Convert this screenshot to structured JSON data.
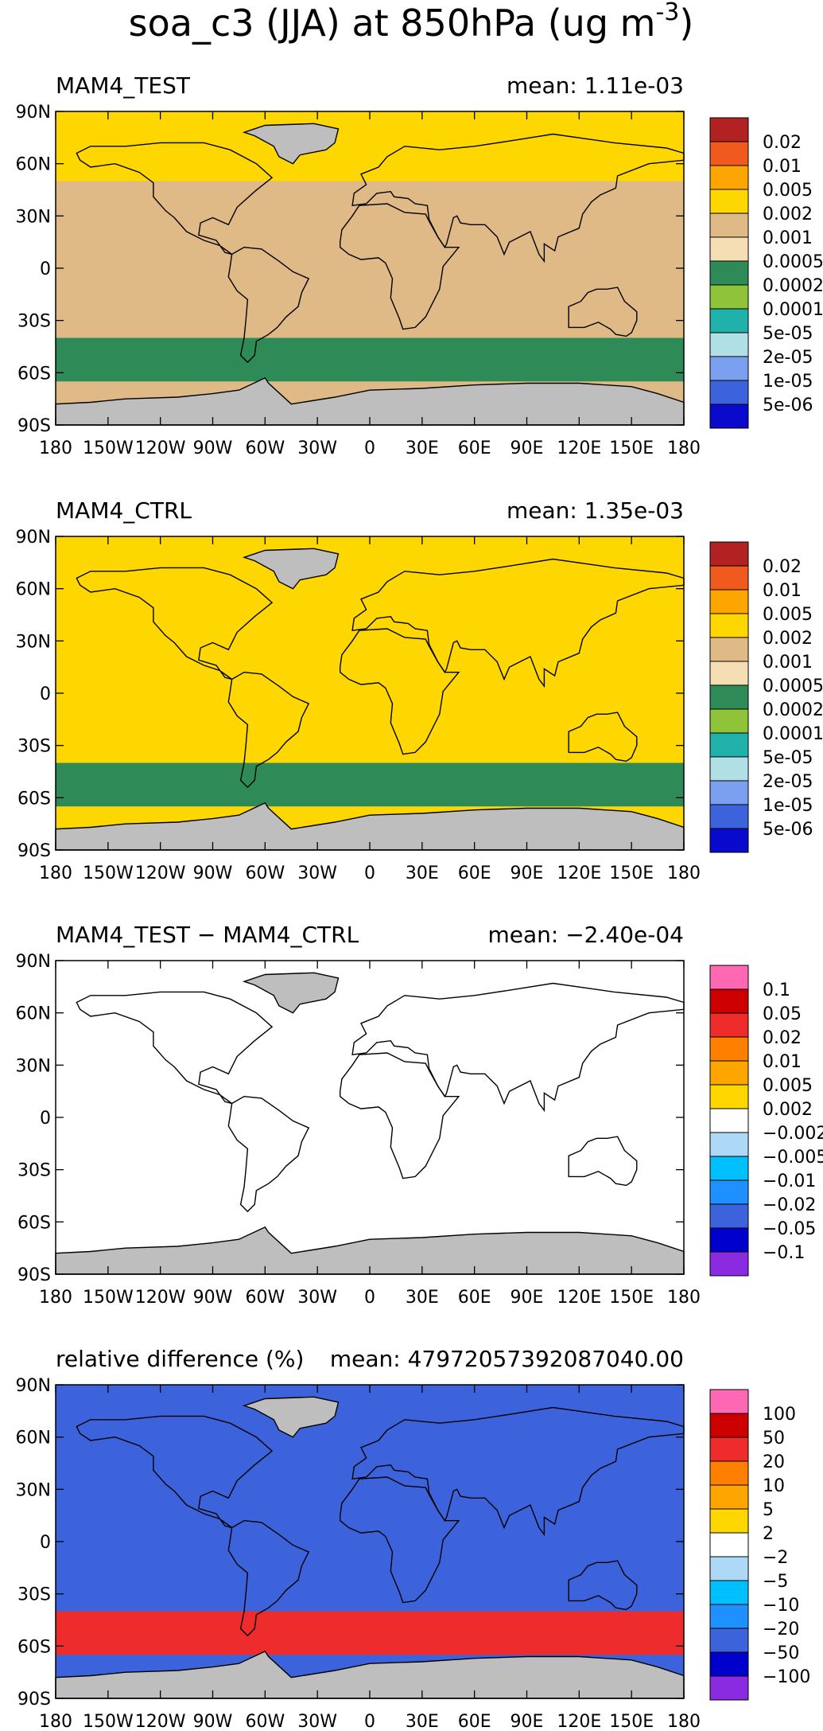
{
  "figure": {
    "title": "soa_c3 (JJA) at 850hPa (ug m",
    "title_superscript": "-3",
    "title_close": ")"
  },
  "chart_data": [
    {
      "type": "heatmap",
      "panel": "MAM4_TEST",
      "title": "MAM4_TEST",
      "mean_label": "mean:  1.11e-03",
      "x_ticks": [
        "180",
        "150W",
        "120W",
        "90W",
        "60W",
        "30W",
        "0",
        "30E",
        "60E",
        "90E",
        "120E",
        "150E",
        "180"
      ],
      "y_ticks": [
        "90N",
        "60N",
        "30N",
        "0",
        "30S",
        "60S",
        "90S"
      ],
      "colorbar": {
        "labels": [
          "0.02",
          "0.01",
          "0.005",
          "0.002",
          "0.001",
          "0.0005",
          "0.0002",
          "0.0001",
          "5e-05",
          "2e-05",
          "1e-05",
          "5e-06"
        ],
        "colors": [
          "#b22222",
          "#f05a1e",
          "#ffa500",
          "#ffd700",
          "#dfb986",
          "#f5deb3",
          "#2e8b57",
          "#8fc43a",
          "#20b2aa",
          "#b0e0e6",
          "#7ba0f0",
          "#3c63dc",
          "#0a0acd"
        ]
      },
      "missing_color": "#bebebe",
      "dominant_bands": {
        "north_polar": "#ffd700",
        "tropics": "#dfb986",
        "southern_ocean": "#2e8b57",
        "antarctic": "#bebebe"
      }
    },
    {
      "type": "heatmap",
      "panel": "MAM4_CTRL",
      "title": "MAM4_CTRL",
      "mean_label": "mean:  1.35e-03",
      "x_ticks": [
        "180",
        "150W",
        "120W",
        "90W",
        "60W",
        "30W",
        "0",
        "30E",
        "60E",
        "90E",
        "120E",
        "150E",
        "180"
      ],
      "y_ticks": [
        "90N",
        "60N",
        "30N",
        "0",
        "30S",
        "60S",
        "90S"
      ],
      "colorbar": {
        "labels": [
          "0.02",
          "0.01",
          "0.005",
          "0.002",
          "0.001",
          "0.0005",
          "0.0002",
          "0.0001",
          "5e-05",
          "2e-05",
          "1e-05",
          "5e-06"
        ],
        "colors": [
          "#b22222",
          "#f05a1e",
          "#ffa500",
          "#ffd700",
          "#dfb986",
          "#f5deb3",
          "#2e8b57",
          "#8fc43a",
          "#20b2aa",
          "#b0e0e6",
          "#7ba0f0",
          "#3c63dc",
          "#0a0acd"
        ]
      },
      "missing_color": "#bebebe",
      "dominant_bands": {
        "north_polar": "#ffd700",
        "tropics": "#ffd700",
        "southern_ocean": "#2e8b57",
        "antarctic": "#bebebe"
      }
    },
    {
      "type": "heatmap",
      "panel": "difference",
      "title": "MAM4_TEST − MAM4_CTRL",
      "mean_label": "mean:  −2.40e-04",
      "x_ticks": [
        "180",
        "150W",
        "120W",
        "90W",
        "60W",
        "30W",
        "0",
        "30E",
        "60E",
        "90E",
        "120E",
        "150E",
        "180"
      ],
      "y_ticks": [
        "90N",
        "60N",
        "30N",
        "0",
        "30S",
        "60S",
        "90S"
      ],
      "colorbar": {
        "labels": [
          "0.1",
          "0.05",
          "0.02",
          "0.01",
          "0.005",
          "0.002",
          "−0.002",
          "−0.005",
          "−0.01",
          "−0.02",
          "−0.05",
          "−0.1"
        ],
        "colors": [
          "#ff69b4",
          "#cd0000",
          "#ee2c2c",
          "#ff7f00",
          "#ffa500",
          "#ffd700",
          "#ffffff",
          "#add8f6",
          "#00bfff",
          "#1e90ff",
          "#3c63dc",
          "#0000cd",
          "#8a2be2"
        ]
      },
      "missing_color": "#bebebe",
      "dominant_bands": {
        "north_polar": "#ffffff",
        "tropics": "#ffffff",
        "southern_ocean": "#ffffff",
        "antarctic": "#bebebe"
      }
    },
    {
      "type": "heatmap",
      "panel": "relative_difference",
      "title": "relative difference (%)",
      "mean_label": "mean:  47972057392087040.00",
      "x_ticks": [
        "180",
        "150W",
        "120W",
        "90W",
        "60W",
        "30W",
        "0",
        "30E",
        "60E",
        "90E",
        "120E",
        "150E",
        "180"
      ],
      "y_ticks": [
        "90N",
        "60N",
        "30N",
        "0",
        "30S",
        "60S",
        "90S"
      ],
      "colorbar": {
        "labels": [
          "100",
          "50",
          "20",
          "10",
          "5",
          "2",
          "−2",
          "−5",
          "−10",
          "−20",
          "−50",
          "−100"
        ],
        "colors": [
          "#ff69b4",
          "#cd0000",
          "#ee2c2c",
          "#ff7f00",
          "#ffa500",
          "#ffd700",
          "#ffffff",
          "#add8f6",
          "#00bfff",
          "#1e90ff",
          "#3c63dc",
          "#0000cd",
          "#8a2be2"
        ]
      },
      "missing_color": "#bebebe",
      "dominant_bands": {
        "north_polar": "#3c63dc",
        "tropics": "#3c63dc",
        "southern_ocean": "#ee2c2c",
        "antarctic": "#bebebe"
      }
    }
  ]
}
